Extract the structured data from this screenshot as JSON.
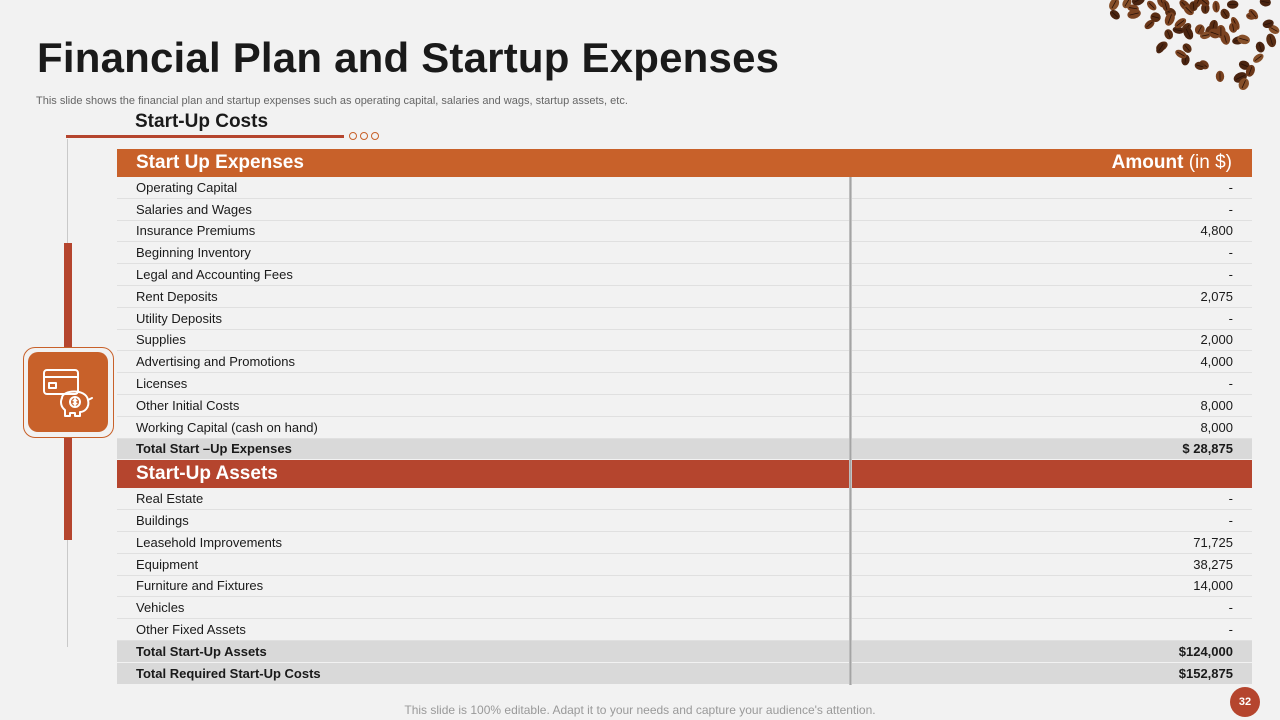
{
  "slide": {
    "title": "Financial Plan and Startup Expenses",
    "subtitle": "This slide shows the financial plan and startup expenses such as operating capital, salaries and wags, startup assets, etc.",
    "section_heading": "Start-Up Costs",
    "footer_note": "This slide is 100% editable. Adapt it to your needs and capture your audience's attention.",
    "page_number": "32"
  },
  "icons": {
    "finance": "piggy-bank-card-icon",
    "decoration": "coffee-beans-image"
  },
  "colors": {
    "accent_orange": "#c8612a",
    "accent_red": "#b5452e",
    "background": "#f2f2f2",
    "total_row": "#d9d9d9"
  },
  "table": {
    "expenses_header": "Start Up Expenses",
    "amount_header_bold": "Amount",
    "amount_header_unit": " (in $)",
    "expenses": [
      {
        "label": "Operating Capital",
        "value": "-"
      },
      {
        "label": "Salaries and Wages",
        "value": "-"
      },
      {
        "label": "Insurance Premiums",
        "value": "4,800"
      },
      {
        "label": "Beginning Inventory",
        "value": "-"
      },
      {
        "label": "Legal and Accounting Fees",
        "value": "-"
      },
      {
        "label": "Rent Deposits",
        "value": "2,075"
      },
      {
        "label": "Utility Deposits",
        "value": "-"
      },
      {
        "label": "Supplies",
        "value": "2,000"
      },
      {
        "label": "Advertising and Promotions",
        "value": "4,000"
      },
      {
        "label": "Licenses",
        "value": "-"
      },
      {
        "label": "Other Initial Costs",
        "value": "8,000"
      },
      {
        "label": "Working Capital (cash on hand)",
        "value": "8,000"
      }
    ],
    "expenses_total": {
      "label": "Total Start –Up Expenses",
      "value": "$ 28,875"
    },
    "assets_header": "Start-Up Assets",
    "assets": [
      {
        "label": "Real Estate",
        "value": "-"
      },
      {
        "label": "Buildings",
        "value": "-"
      },
      {
        "label": "Leasehold Improvements",
        "value": "71,725"
      },
      {
        "label": "Equipment",
        "value": "38,275"
      },
      {
        "label": "Furniture and Fixtures",
        "value": "14,000"
      },
      {
        "label": "Vehicles",
        "value": "-"
      },
      {
        "label": "Other Fixed Assets",
        "value": "-"
      }
    ],
    "assets_total": {
      "label": "Total Start-Up Assets",
      "value": "$124,000"
    },
    "grand_total": {
      "label": "Total Required Start-Up Costs",
      "value": "$152,875"
    }
  }
}
